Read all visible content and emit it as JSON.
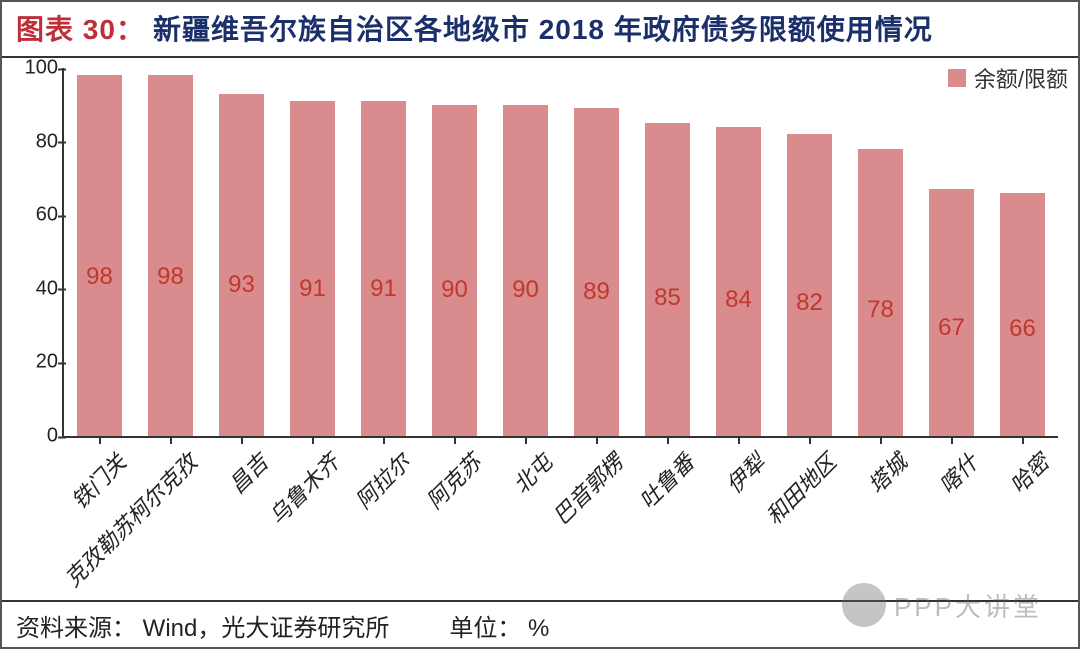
{
  "title": {
    "prefix": "图表 30：",
    "text": "新疆维吾尔族自治区各地级市 2018 年政府债务限额使用情况",
    "prefix_color": "#bf2f3a",
    "text_color": "#1b2f6b",
    "fontsize": 28
  },
  "chart": {
    "type": "bar",
    "categories": [
      "铁门关",
      "克孜勒苏柯尔克孜",
      "昌吉",
      "乌鲁木齐",
      "阿拉尔",
      "阿克苏",
      "北屯",
      "巴音郭楞",
      "吐鲁番",
      "伊犁",
      "和田地区",
      "塔城",
      "喀什",
      "哈密"
    ],
    "values": [
      98,
      98,
      93,
      91,
      91,
      90,
      90,
      89,
      85,
      84,
      82,
      78,
      67,
      66
    ],
    "bar_color": "#d98b8e",
    "value_label_color": "#c0392b",
    "value_label_fontsize": 24,
    "xlabel_fontsize": 22,
    "xlabel_rotation_deg": -45,
    "ylim": [
      0,
      100
    ],
    "yticks": [
      0,
      20,
      40,
      60,
      80,
      100
    ],
    "ytick_fontsize": 20,
    "axis_color": "#333333",
    "background_color": "#ffffff",
    "bar_width_ratio": 0.64,
    "legend": {
      "label": "余额/限额",
      "swatch_color": "#d98b8e",
      "fontsize": 22
    }
  },
  "footer": {
    "source_label": "资料来源：",
    "source_value": "Wind，光大证券研究所",
    "unit_label": "单位：",
    "unit_value": "%",
    "fontsize": 24
  },
  "watermark": {
    "text": "PPP大讲堂"
  }
}
